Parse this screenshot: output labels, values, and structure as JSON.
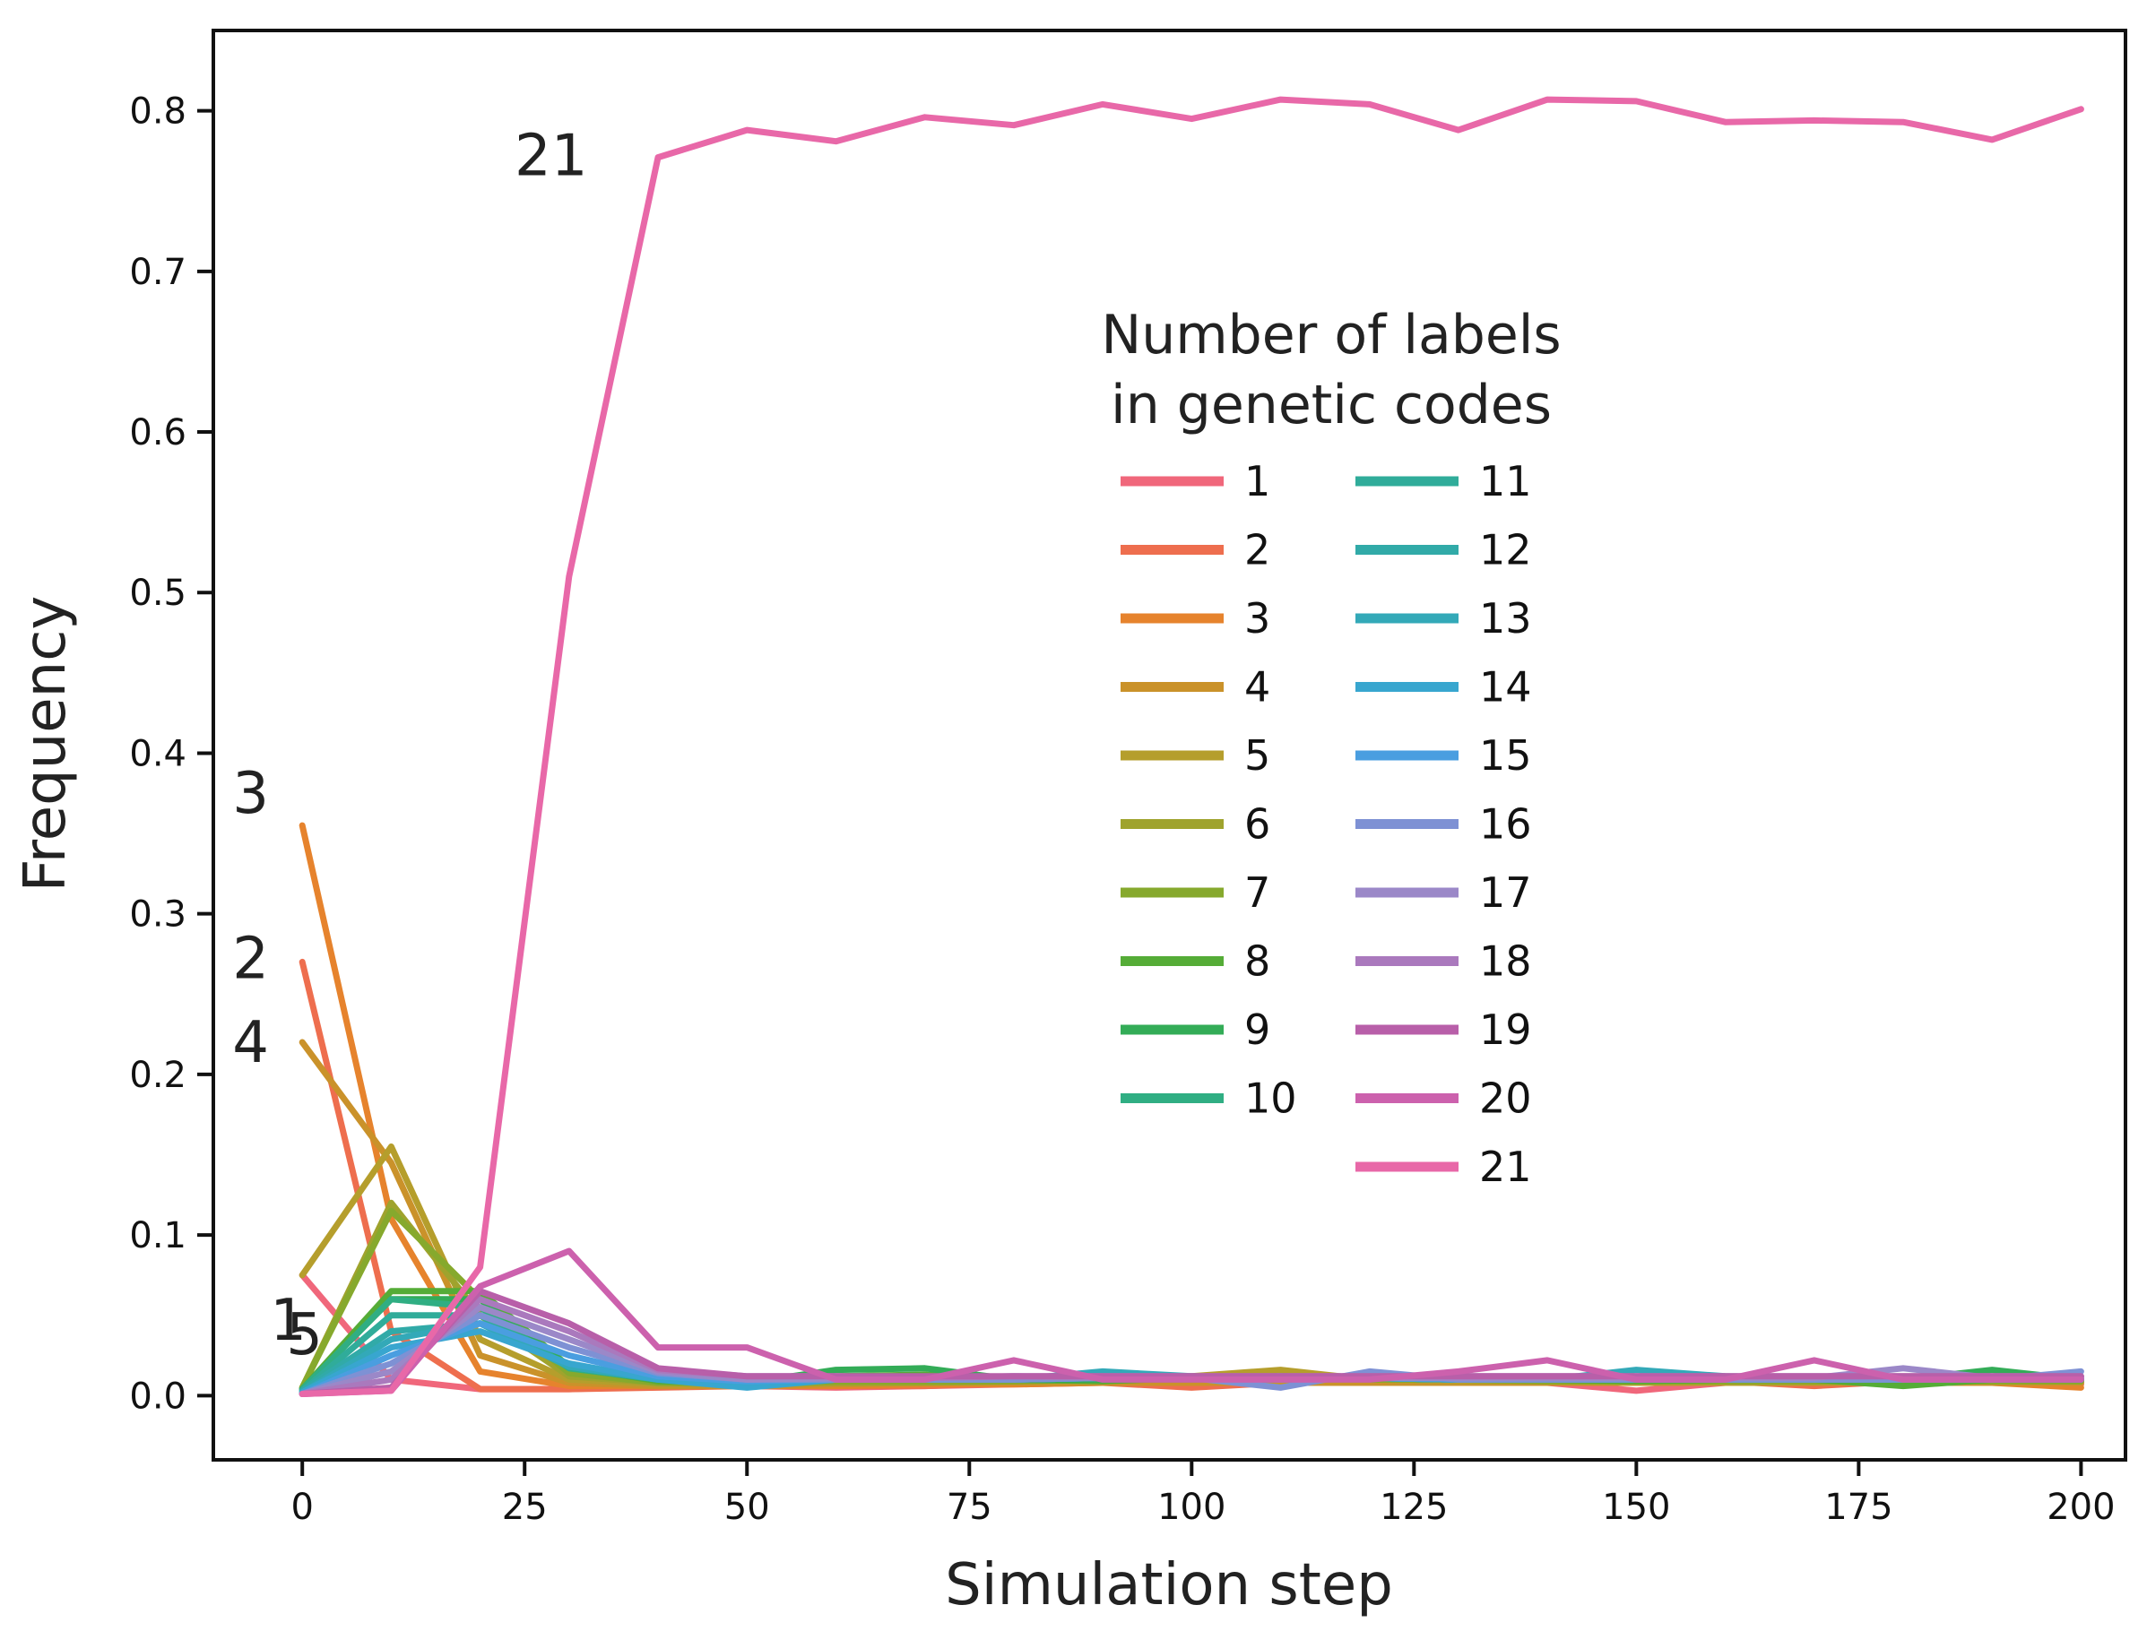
{
  "chart_data": {
    "type": "line",
    "title": "",
    "xlabel": "Simulation step",
    "ylabel": "Frequency",
    "xlim": [
      -10,
      205
    ],
    "ylim": [
      -0.04,
      0.85
    ],
    "xticks": [
      0,
      25,
      50,
      75,
      100,
      125,
      150,
      175,
      200
    ],
    "yticks": [
      0.0,
      0.1,
      0.2,
      0.3,
      0.4,
      0.5,
      0.6,
      0.7,
      0.8
    ],
    "xtick_labels": [
      "0",
      "25",
      "50",
      "75",
      "100",
      "125",
      "150",
      "175",
      "200"
    ],
    "ytick_labels": [
      "0.0",
      "0.1",
      "0.2",
      "0.3",
      "0.4",
      "0.5",
      "0.6",
      "0.7",
      "0.8"
    ],
    "grid": false,
    "legend": {
      "title_lines": [
        "Number of labels",
        "in genetic codes"
      ],
      "placement": "center-right",
      "columns": 2
    },
    "x": [
      0,
      10,
      20,
      30,
      40,
      50,
      60,
      70,
      80,
      90,
      100,
      110,
      120,
      130,
      140,
      150,
      160,
      170,
      180,
      190,
      200
    ],
    "series": [
      {
        "name": "1",
        "color": "#f0677b",
        "values": [
          0.075,
          0.01,
          0.004,
          0.004,
          0.006,
          0.006,
          0.005,
          0.006,
          0.007,
          0.008,
          0.008,
          0.008,
          0.009,
          0.009,
          0.008,
          0.003,
          0.008,
          0.008,
          0.008,
          0.008,
          0.008
        ]
      },
      {
        "name": "2",
        "color": "#ee6e4e",
        "values": [
          0.27,
          0.04,
          0.004,
          0.004,
          0.005,
          0.006,
          0.006,
          0.006,
          0.008,
          0.008,
          0.005,
          0.008,
          0.009,
          0.01,
          0.009,
          0.008,
          0.009,
          0.006,
          0.009,
          0.008,
          0.007
        ]
      },
      {
        "name": "3",
        "color": "#e6832d",
        "values": [
          0.355,
          0.11,
          0.015,
          0.006,
          0.006,
          0.006,
          0.006,
          0.007,
          0.007,
          0.008,
          0.008,
          0.008,
          0.008,
          0.008,
          0.008,
          0.008,
          0.008,
          0.008,
          0.008,
          0.008,
          0.005
        ]
      },
      {
        "name": "4",
        "color": "#ca922a",
        "values": [
          0.22,
          0.145,
          0.025,
          0.008,
          0.006,
          0.006,
          0.007,
          0.008,
          0.008,
          0.008,
          0.008,
          0.008,
          0.008,
          0.008,
          0.008,
          0.008,
          0.008,
          0.008,
          0.008,
          0.008,
          0.008
        ]
      },
      {
        "name": "5",
        "color": "#b59e2c",
        "values": [
          0.075,
          0.155,
          0.035,
          0.01,
          0.007,
          0.007,
          0.008,
          0.008,
          0.009,
          0.009,
          0.012,
          0.016,
          0.01,
          0.009,
          0.009,
          0.008,
          0.008,
          0.008,
          0.009,
          0.009,
          0.009
        ]
      },
      {
        "name": "6",
        "color": "#9fa32d",
        "values": [
          0.005,
          0.12,
          0.05,
          0.012,
          0.008,
          0.007,
          0.008,
          0.008,
          0.009,
          0.01,
          0.01,
          0.012,
          0.01,
          0.01,
          0.009,
          0.009,
          0.009,
          0.009,
          0.009,
          0.009,
          0.009
        ]
      },
      {
        "name": "7",
        "color": "#86a92d",
        "values": [
          0.005,
          0.115,
          0.06,
          0.014,
          0.008,
          0.008,
          0.009,
          0.009,
          0.009,
          0.01,
          0.01,
          0.01,
          0.01,
          0.01,
          0.009,
          0.009,
          0.009,
          0.009,
          0.009,
          0.009,
          0.009
        ]
      },
      {
        "name": "8",
        "color": "#55ac37",
        "values": [
          0.004,
          0.065,
          0.065,
          0.018,
          0.009,
          0.008,
          0.012,
          0.013,
          0.01,
          0.009,
          0.011,
          0.012,
          0.011,
          0.01,
          0.01,
          0.009,
          0.01,
          0.01,
          0.006,
          0.01,
          0.01
        ]
      },
      {
        "name": "9",
        "color": "#33ac57",
        "values": [
          0.004,
          0.06,
          0.06,
          0.018,
          0.01,
          0.008,
          0.016,
          0.017,
          0.01,
          0.01,
          0.011,
          0.01,
          0.011,
          0.01,
          0.01,
          0.01,
          0.011,
          0.01,
          0.01,
          0.016,
          0.01
        ]
      },
      {
        "name": "10",
        "color": "#30ae83",
        "values": [
          0.004,
          0.06,
          0.055,
          0.017,
          0.01,
          0.008,
          0.01,
          0.01,
          0.01,
          0.011,
          0.011,
          0.011,
          0.011,
          0.01,
          0.01,
          0.01,
          0.01,
          0.01,
          0.01,
          0.01,
          0.01
        ]
      },
      {
        "name": "11",
        "color": "#30ac9a",
        "values": [
          0.003,
          0.05,
          0.05,
          0.018,
          0.01,
          0.008,
          0.01,
          0.01,
          0.01,
          0.011,
          0.011,
          0.011,
          0.011,
          0.01,
          0.01,
          0.01,
          0.01,
          0.01,
          0.01,
          0.01,
          0.01
        ]
      },
      {
        "name": "12",
        "color": "#31aaa8",
        "values": [
          0.003,
          0.04,
          0.045,
          0.018,
          0.01,
          0.008,
          0.01,
          0.01,
          0.01,
          0.011,
          0.011,
          0.011,
          0.011,
          0.01,
          0.01,
          0.01,
          0.01,
          0.01,
          0.01,
          0.01,
          0.01
        ]
      },
      {
        "name": "13",
        "color": "#33a9b8",
        "values": [
          0.002,
          0.035,
          0.045,
          0.018,
          0.01,
          0.008,
          0.01,
          0.01,
          0.01,
          0.015,
          0.012,
          0.01,
          0.011,
          0.01,
          0.01,
          0.016,
          0.012,
          0.01,
          0.01,
          0.01,
          0.01
        ]
      },
      {
        "name": "14",
        "color": "#38a6cf",
        "values": [
          0.002,
          0.03,
          0.04,
          0.02,
          0.01,
          0.005,
          0.01,
          0.01,
          0.01,
          0.011,
          0.011,
          0.01,
          0.011,
          0.01,
          0.01,
          0.01,
          0.01,
          0.01,
          0.01,
          0.01,
          0.01
        ]
      },
      {
        "name": "15",
        "color": "#4a9ee0",
        "values": [
          0.001,
          0.025,
          0.045,
          0.025,
          0.012,
          0.009,
          0.01,
          0.01,
          0.01,
          0.011,
          0.011,
          0.01,
          0.011,
          0.01,
          0.01,
          0.01,
          0.01,
          0.01,
          0.01,
          0.01,
          0.01
        ]
      },
      {
        "name": "16",
        "color": "#7e91d4",
        "values": [
          0.001,
          0.02,
          0.05,
          0.03,
          0.014,
          0.01,
          0.01,
          0.01,
          0.01,
          0.011,
          0.011,
          0.005,
          0.015,
          0.01,
          0.01,
          0.01,
          0.01,
          0.01,
          0.01,
          0.01,
          0.015
        ]
      },
      {
        "name": "17",
        "color": "#9b88c8",
        "values": [
          0.001,
          0.015,
          0.055,
          0.035,
          0.015,
          0.01,
          0.011,
          0.011,
          0.012,
          0.011,
          0.011,
          0.011,
          0.011,
          0.011,
          0.011,
          0.011,
          0.011,
          0.011,
          0.017,
          0.011,
          0.011
        ]
      },
      {
        "name": "18",
        "color": "#aa79bd",
        "values": [
          0.001,
          0.01,
          0.06,
          0.04,
          0.016,
          0.012,
          0.012,
          0.011,
          0.012,
          0.012,
          0.012,
          0.012,
          0.012,
          0.012,
          0.012,
          0.012,
          0.012,
          0.012,
          0.012,
          0.012,
          0.012
        ]
      },
      {
        "name": "19",
        "color": "#b85fa9",
        "values": [
          0.001,
          0.005,
          0.065,
          0.045,
          0.017,
          0.012,
          0.012,
          0.012,
          0.012,
          0.012,
          0.012,
          0.012,
          0.012,
          0.012,
          0.012,
          0.012,
          0.012,
          0.012,
          0.012,
          0.012,
          0.012
        ]
      },
      {
        "name": "20",
        "color": "#cc61ad",
        "values": [
          0.001,
          0.003,
          0.068,
          0.09,
          0.03,
          0.03,
          0.01,
          0.01,
          0.022,
          0.01,
          0.01,
          0.01,
          0.01,
          0.015,
          0.022,
          0.01,
          0.01,
          0.022,
          0.01,
          0.01,
          0.01
        ]
      },
      {
        "name": "21",
        "color": "#e868a8",
        "values": [
          0.001,
          0.003,
          0.08,
          0.51,
          0.771,
          0.788,
          0.781,
          0.796,
          0.791,
          0.804,
          0.795,
          0.807,
          0.804,
          0.788,
          0.807,
          0.806,
          0.793,
          0.794,
          0.793,
          0.782,
          0.801
        ]
      }
    ],
    "annotations": [
      {
        "text": "21",
        "series": "21",
        "x": 40,
        "y": 0.771
      },
      {
        "text": "3",
        "series": "3",
        "x": 0,
        "y": 0.355
      },
      {
        "text": "2",
        "series": "2",
        "x": 0,
        "y": 0.27
      },
      {
        "text": "4",
        "series": "4",
        "x": 0,
        "y": 0.22
      },
      {
        "text": "5",
        "series": "5",
        "x": 0,
        "y": 0.075
      },
      {
        "text": "1",
        "series": "1",
        "x": 0,
        "y": 0.075
      }
    ]
  }
}
